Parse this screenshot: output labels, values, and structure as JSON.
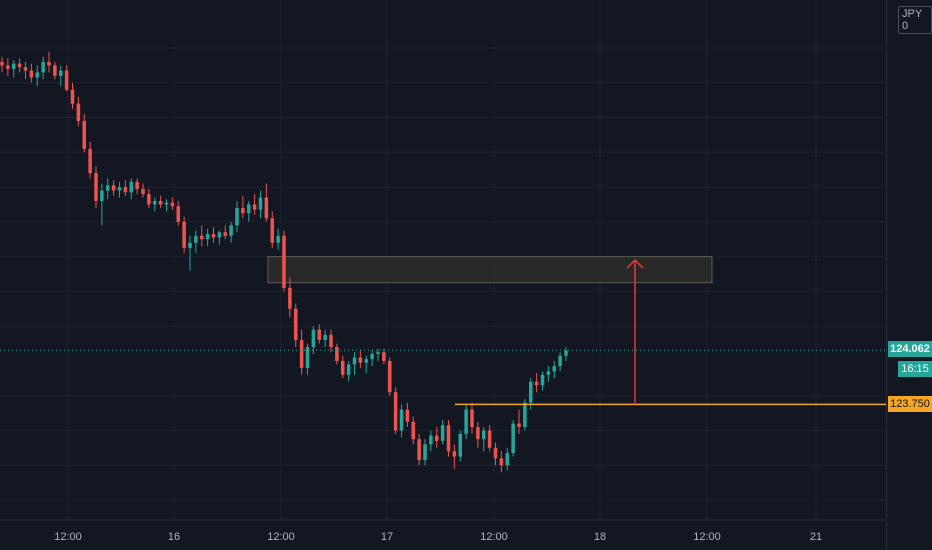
{
  "currency": "JPY",
  "currency_suffix": "0",
  "current_price": "124.062",
  "countdown": "16:15",
  "level_price": "123.750",
  "colors": {
    "background": "#131722",
    "grid": "#1e2230",
    "axis_text": "#b2b5be",
    "up": "#26a69a",
    "down": "#ef5350",
    "level_line": "#f5a623",
    "zone_fill": "#2b2b27",
    "zone_border": "#5d5d55",
    "arrow": "#e53935"
  },
  "chart_data": {
    "type": "candlestick",
    "ylim": [
      123.1,
      126.0
    ],
    "y_ticks": [
      "125.800",
      "125.600",
      "125.400",
      "125.200",
      "125.000",
      "124.800",
      "124.600",
      "124.400",
      "124.200",
      "123.800",
      "123.600",
      "123.400",
      "123.200"
    ],
    "x_tick_labels": [
      "12:00",
      "16",
      "12:00",
      "17",
      "12:00",
      "18",
      "12:00",
      "21"
    ],
    "current_price_line": 124.062,
    "horizontal_level": 123.75,
    "resistance_zone": [
      124.45,
      124.6
    ],
    "projection_arrow": {
      "from": 123.75,
      "to": 124.58
    },
    "candles": [
      [
        125.72,
        125.75,
        125.66,
        125.7
      ],
      [
        125.7,
        125.74,
        125.64,
        125.68
      ],
      [
        125.68,
        125.73,
        125.63,
        125.71
      ],
      [
        125.71,
        125.74,
        125.66,
        125.69
      ],
      [
        125.69,
        125.72,
        125.62,
        125.67
      ],
      [
        125.67,
        125.71,
        125.6,
        125.63
      ],
      [
        125.63,
        125.7,
        125.58,
        125.66
      ],
      [
        125.66,
        125.75,
        125.62,
        125.72
      ],
      [
        125.72,
        125.78,
        125.66,
        125.7
      ],
      [
        125.7,
        125.72,
        125.62,
        125.64
      ],
      [
        125.64,
        125.7,
        125.58,
        125.67
      ],
      [
        125.67,
        125.7,
        125.55,
        125.56
      ],
      [
        125.56,
        125.6,
        125.45,
        125.48
      ],
      [
        125.48,
        125.52,
        125.35,
        125.38
      ],
      [
        125.38,
        125.42,
        125.2,
        125.22
      ],
      [
        125.22,
        125.26,
        125.05,
        125.08
      ],
      [
        125.08,
        125.12,
        124.88,
        124.92
      ],
      [
        124.92,
        125.02,
        124.78,
        124.98
      ],
      [
        124.98,
        125.05,
        124.93,
        125.01
      ],
      [
        125.01,
        125.04,
        124.95,
        124.98
      ],
      [
        124.98,
        125.03,
        124.94,
        125.0
      ],
      [
        125.0,
        125.04,
        124.95,
        124.97
      ],
      [
        124.97,
        125.05,
        124.93,
        125.03
      ],
      [
        125.03,
        125.05,
        124.96,
        124.99
      ],
      [
        124.99,
        125.02,
        124.94,
        124.96
      ],
      [
        124.96,
        124.99,
        124.88,
        124.9
      ],
      [
        124.9,
        124.94,
        124.86,
        124.92
      ],
      [
        124.92,
        124.95,
        124.88,
        124.9
      ],
      [
        124.9,
        124.93,
        124.86,
        124.91
      ],
      [
        124.91,
        124.94,
        124.87,
        124.89
      ],
      [
        124.89,
        124.92,
        124.78,
        124.8
      ],
      [
        124.8,
        124.83,
        124.62,
        124.65
      ],
      [
        124.65,
        124.72,
        124.52,
        124.68
      ],
      [
        124.68,
        124.75,
        124.62,
        124.72
      ],
      [
        124.72,
        124.78,
        124.66,
        124.7
      ],
      [
        124.7,
        124.76,
        124.66,
        124.73
      ],
      [
        124.73,
        124.77,
        124.68,
        124.71
      ],
      [
        124.71,
        124.75,
        124.67,
        124.74
      ],
      [
        124.74,
        124.78,
        124.7,
        124.72
      ],
      [
        124.72,
        124.8,
        124.68,
        124.78
      ],
      [
        124.78,
        124.92,
        124.74,
        124.88
      ],
      [
        124.88,
        124.95,
        124.82,
        124.85
      ],
      [
        124.85,
        124.92,
        124.8,
        124.9
      ],
      [
        124.9,
        124.96,
        124.84,
        124.87
      ],
      [
        124.87,
        124.98,
        124.82,
        124.94
      ],
      [
        124.94,
        125.02,
        124.8,
        124.82
      ],
      [
        124.82,
        124.86,
        124.65,
        124.68
      ],
      [
        124.68,
        124.76,
        124.64,
        124.72
      ],
      [
        124.72,
        124.75,
        124.4,
        124.42
      ],
      [
        124.42,
        124.48,
        124.25,
        124.3
      ],
      [
        124.3,
        124.33,
        124.08,
        124.12
      ],
      [
        124.12,
        124.18,
        123.92,
        123.96
      ],
      [
        123.96,
        124.1,
        123.92,
        124.08
      ],
      [
        124.08,
        124.2,
        124.04,
        124.18
      ],
      [
        124.18,
        124.21,
        124.1,
        124.12
      ],
      [
        124.12,
        124.18,
        124.08,
        124.15
      ],
      [
        124.15,
        124.18,
        124.05,
        124.08
      ],
      [
        124.08,
        124.1,
        123.98,
        124.0
      ],
      [
        124.0,
        124.03,
        123.9,
        123.92
      ],
      [
        123.92,
        124.0,
        123.88,
        123.98
      ],
      [
        123.98,
        124.05,
        123.92,
        124.02
      ],
      [
        124.02,
        124.06,
        123.96,
        123.99
      ],
      [
        123.99,
        124.03,
        123.93,
        124.01
      ],
      [
        124.01,
        124.06,
        123.97,
        124.04
      ],
      [
        124.04,
        124.07,
        124.0,
        124.05
      ],
      [
        124.05,
        124.07,
        123.98,
        124.0
      ],
      [
        124.0,
        124.02,
        123.8,
        123.82
      ],
      [
        123.82,
        123.85,
        123.58,
        123.6
      ],
      [
        123.6,
        123.75,
        123.56,
        123.72
      ],
      [
        123.72,
        123.76,
        123.62,
        123.65
      ],
      [
        123.65,
        123.68,
        123.52,
        123.55
      ],
      [
        123.55,
        123.58,
        123.4,
        123.43
      ],
      [
        123.43,
        123.55,
        123.4,
        123.52
      ],
      [
        123.52,
        123.6,
        123.48,
        123.57
      ],
      [
        123.57,
        123.62,
        123.5,
        123.54
      ],
      [
        123.54,
        123.66,
        123.52,
        123.63
      ],
      [
        123.63,
        123.66,
        123.45,
        123.48
      ],
      [
        123.48,
        123.52,
        123.38,
        123.45
      ],
      [
        123.45,
        123.6,
        123.42,
        123.58
      ],
      [
        123.58,
        123.75,
        123.55,
        123.72
      ],
      [
        123.72,
        123.76,
        123.58,
        123.62
      ],
      [
        123.62,
        123.65,
        123.5,
        123.55
      ],
      [
        123.55,
        123.62,
        123.48,
        123.6
      ],
      [
        123.6,
        123.63,
        123.48,
        123.5
      ],
      [
        123.5,
        123.53,
        123.4,
        123.44
      ],
      [
        123.44,
        123.48,
        123.36,
        123.4
      ],
      [
        123.4,
        123.5,
        123.37,
        123.47
      ],
      [
        123.47,
        123.66,
        123.45,
        123.64
      ],
      [
        123.64,
        123.72,
        123.58,
        123.62
      ],
      [
        123.62,
        123.78,
        123.6,
        123.76
      ],
      [
        123.76,
        123.9,
        123.72,
        123.88
      ],
      [
        123.88,
        123.93,
        123.82,
        123.86
      ],
      [
        123.86,
        123.94,
        123.83,
        123.92
      ],
      [
        123.92,
        123.97,
        123.88,
        123.94
      ],
      [
        123.94,
        124.0,
        123.9,
        123.97
      ],
      [
        123.97,
        124.05,
        123.94,
        124.03
      ],
      [
        124.03,
        124.08,
        124.0,
        124.06
      ]
    ]
  }
}
